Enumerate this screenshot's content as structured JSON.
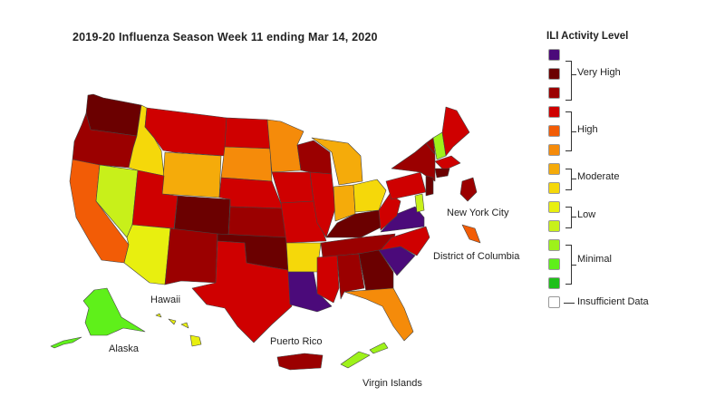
{
  "title": "2019-20 Influenza Season Week 11 ending Mar 14, 2020",
  "legend": {
    "title": "ILI Activity Level",
    "levels": [
      {
        "level": 10,
        "color": "#4b0a7a"
      },
      {
        "level": 9,
        "color": "#6b0000"
      },
      {
        "level": 8,
        "color": "#9b0000"
      },
      {
        "level": 7,
        "color": "#cf0000"
      },
      {
        "level": 6,
        "color": "#f25c06"
      },
      {
        "level": 5,
        "color": "#f58b0a"
      },
      {
        "level": 4,
        "color": "#f5ab0a"
      },
      {
        "level": 3,
        "color": "#f5d80a"
      },
      {
        "level": 2,
        "color": "#e8ef0f"
      },
      {
        "level": 1,
        "color": "#c8f01a"
      },
      {
        "level": 0,
        "color": "#9ef21a"
      },
      {
        "level": -1,
        "color": "#5ff01a"
      },
      {
        "level": -2,
        "color": "#1fc01a"
      }
    ],
    "groups": [
      {
        "label": "Very High"
      },
      {
        "label": "High"
      },
      {
        "label": "Moderate"
      },
      {
        "label": "Low"
      },
      {
        "label": "Minimal"
      }
    ],
    "insufficient": {
      "label": "Insufficient Data",
      "color": "#ffffff"
    }
  },
  "place_labels": {
    "new_york_city": "New York City",
    "district_of_columbia": "District of Columbia",
    "hawaii": "Hawaii",
    "alaska": "Alaska",
    "puerto_rico": "Puerto Rico",
    "virgin_islands": "Virgin Islands"
  },
  "regions": [
    {
      "name": "WA",
      "color": "#6b0000"
    },
    {
      "name": "OR",
      "color": "#9b0000"
    },
    {
      "name": "CA",
      "color": "#f25c06"
    },
    {
      "name": "NV",
      "color": "#c8f01a"
    },
    {
      "name": "ID",
      "color": "#f5d80a"
    },
    {
      "name": "MT",
      "color": "#cf0000"
    },
    {
      "name": "WY",
      "color": "#f5ab0a"
    },
    {
      "name": "UT",
      "color": "#cf0000"
    },
    {
      "name": "AZ",
      "color": "#e8ef0f"
    },
    {
      "name": "CO",
      "color": "#6b0000"
    },
    {
      "name": "NM",
      "color": "#9b0000"
    },
    {
      "name": "ND",
      "color": "#cf0000"
    },
    {
      "name": "SD",
      "color": "#f58b0a"
    },
    {
      "name": "NE",
      "color": "#cf0000"
    },
    {
      "name": "KS",
      "color": "#9b0000"
    },
    {
      "name": "OK",
      "color": "#6b0000"
    },
    {
      "name": "TX",
      "color": "#cf0000"
    },
    {
      "name": "MN",
      "color": "#f58b0a"
    },
    {
      "name": "IA",
      "color": "#cf0000"
    },
    {
      "name": "MO",
      "color": "#cf0000"
    },
    {
      "name": "AR",
      "color": "#f5d80a"
    },
    {
      "name": "LA",
      "color": "#4b0a7a"
    },
    {
      "name": "WI",
      "color": "#9b0000"
    },
    {
      "name": "IL",
      "color": "#cf0000"
    },
    {
      "name": "MI",
      "color": "#f5ab0a"
    },
    {
      "name": "IN",
      "color": "#f5ab0a"
    },
    {
      "name": "OH",
      "color": "#f5d80a"
    },
    {
      "name": "KY",
      "color": "#6b0000"
    },
    {
      "name": "TN",
      "color": "#9b0000"
    },
    {
      "name": "MS",
      "color": "#cf0000"
    },
    {
      "name": "AL",
      "color": "#9b0000"
    },
    {
      "name": "GA",
      "color": "#6b0000"
    },
    {
      "name": "FL",
      "color": "#f58b0a"
    },
    {
      "name": "SC",
      "color": "#4b0a7a"
    },
    {
      "name": "NC",
      "color": "#cf0000"
    },
    {
      "name": "VA",
      "color": "#4b0a7a"
    },
    {
      "name": "WV",
      "color": "#cf0000"
    },
    {
      "name": "PA",
      "color": "#cf0000"
    },
    {
      "name": "NY",
      "color": "#9b0000"
    },
    {
      "name": "VT",
      "color": "#9b0000"
    },
    {
      "name": "NH",
      "color": "#9ef21a"
    },
    {
      "name": "ME",
      "color": "#cf0000"
    },
    {
      "name": "MA",
      "color": "#cf0000"
    },
    {
      "name": "CT",
      "color": "#6b0000"
    },
    {
      "name": "NJ",
      "color": "#6b0000"
    },
    {
      "name": "MD",
      "color": "#c8f01a"
    },
    {
      "name": "AK",
      "color": "#5ff01a"
    },
    {
      "name": "HI",
      "color": "#e8ef0f"
    },
    {
      "name": "PR",
      "color": "#9b0000"
    },
    {
      "name": "VI",
      "color": "#9ef21a"
    },
    {
      "name": "NYC",
      "color": "#9b0000"
    },
    {
      "name": "DC",
      "color": "#f25c06"
    }
  ]
}
